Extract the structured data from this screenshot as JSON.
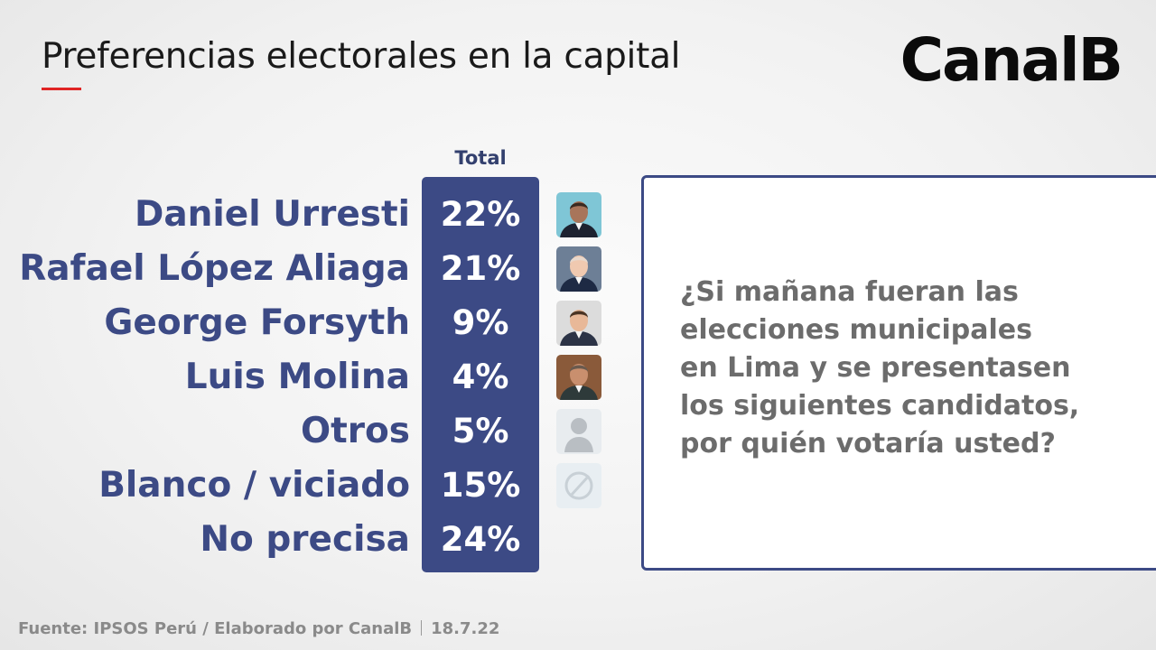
{
  "header": {
    "title": "Preferencias electorales en la capital",
    "brand": "CanalB",
    "accent_color": "#e02424"
  },
  "chart_data": {
    "type": "table",
    "column_header": "Total",
    "unit": "%",
    "bar_color": "#3c4a85",
    "rows": [
      {
        "label": "Daniel Urresti",
        "value": 22,
        "value_label": "22%",
        "icon": "candidate-photo-urresti"
      },
      {
        "label": "Rafael López Aliaga",
        "value": 21,
        "value_label": "21%",
        "icon": "candidate-photo-lopez-aliaga"
      },
      {
        "label": "George Forsyth",
        "value": 9,
        "value_label": "9%",
        "icon": "candidate-photo-forsyth"
      },
      {
        "label": "Luis Molina",
        "value": 4,
        "value_label": "4%",
        "icon": "candidate-photo-molina"
      },
      {
        "label": "Otros",
        "value": 5,
        "value_label": "5%",
        "icon": "generic-person-icon"
      },
      {
        "label": "Blanco / viciado",
        "value": 15,
        "value_label": "15%",
        "icon": "null-vote-icon"
      },
      {
        "label": "No precisa",
        "value": 24,
        "value_label": "24%",
        "icon": ""
      }
    ]
  },
  "question": "¿Si mañana fueran las\nelecciones municipales\nen Lima y se presentasen\nlos siguientes candidatos,\npor quién votaría usted?",
  "footer": {
    "source": "Fuente: IPSOS Perú / Elaborado por CanalB",
    "date": "18.7.22"
  }
}
